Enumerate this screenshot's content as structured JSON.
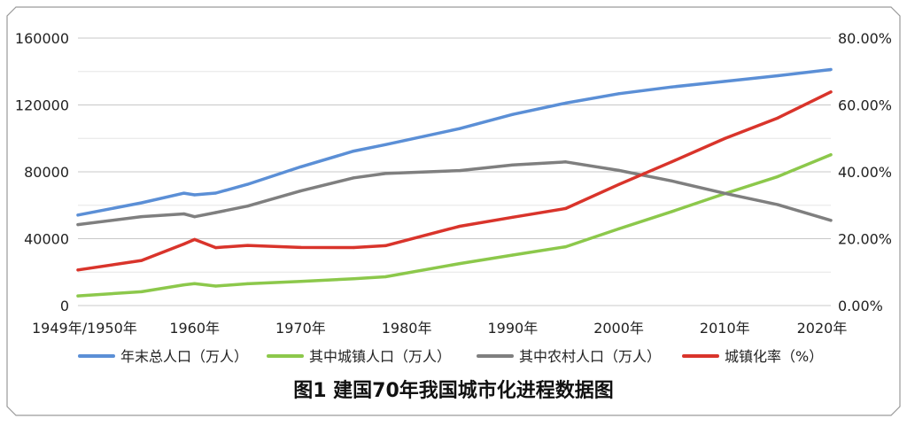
{
  "chart_data": {
    "type": "line",
    "title": "图1 建国70年我国城市化进程数据图",
    "x": [
      1949,
      1955,
      1959,
      1960,
      1962,
      1965,
      1970,
      1975,
      1978,
      1985,
      1990,
      1995,
      2000,
      2005,
      2010,
      2015,
      2020
    ],
    "x_ticks": [
      {
        "value": 1949,
        "label": "1949年/1950年"
      },
      {
        "value": 1960,
        "label": "1960年"
      },
      {
        "value": 1970,
        "label": "1970年"
      },
      {
        "value": 1980,
        "label": "1980年"
      },
      {
        "value": 1990,
        "label": "1990年"
      },
      {
        "value": 2000,
        "label": "2000年"
      },
      {
        "value": 2010,
        "label": "2010年"
      },
      {
        "value": 2020,
        "label": "2020年"
      }
    ],
    "ylim_left": [
      0,
      160000
    ],
    "yticks_left": [
      "0",
      "40000",
      "80000",
      "120000",
      "160000"
    ],
    "ylim_right": [
      0,
      80
    ],
    "yticks_right": [
      "0.00%",
      "20.00%",
      "40.00%",
      "60.00%",
      "80.00%"
    ],
    "grid": true,
    "legend_position": "bottom",
    "series": [
      {
        "name": "年末总人口（万人）",
        "axis": "left",
        "color": "#5B8FD6",
        "values": [
          54167,
          61465,
          67207,
          66207,
          67295,
          72538,
          82992,
          92420,
          96259,
          105851,
          114333,
          121121,
          126743,
          130756,
          134091,
          137462,
          141212
        ]
      },
      {
        "name": "其中城镇人口（万人）",
        "axis": "left",
        "color": "#8CC84B",
        "values": [
          5765,
          8285,
          12371,
          13073,
          11659,
          13045,
          14424,
          16030,
          17245,
          25094,
          30195,
          35174,
          45906,
          56212,
          66978,
          77116,
          90220
        ]
      },
      {
        "name": "其中农村人口（万人）",
        "axis": "left",
        "color": "#7F7F7F",
        "values": [
          48402,
          53180,
          54836,
          53134,
          55636,
          59493,
          68568,
          76390,
          79014,
          80757,
          84138,
          85947,
          80837,
          74544,
          67113,
          60346,
          50992
        ]
      },
      {
        "name": "城镇化率（%）",
        "axis": "right",
        "color": "#D9342B",
        "values": [
          10.64,
          13.48,
          18.41,
          19.75,
          17.33,
          17.98,
          17.38,
          17.34,
          17.92,
          23.71,
          26.41,
          29.04,
          36.22,
          42.99,
          49.95,
          56.1,
          63.89
        ]
      }
    ]
  }
}
